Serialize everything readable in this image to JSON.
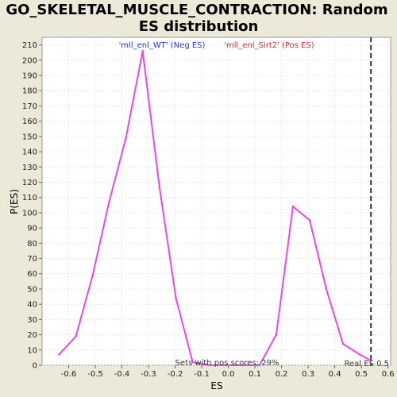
{
  "chart_data": {
    "type": "line",
    "title_line1": "GO_SKELETAL_MUSCLE_CONTRACTION: Random",
    "title_line2": "ES distribution",
    "xlabel": "ES",
    "ylabel": "P(ES)",
    "xlim": [
      -0.7,
      0.61
    ],
    "ylim": [
      0,
      215
    ],
    "x_ticks": [
      -0.6,
      -0.5,
      -0.4,
      -0.3,
      -0.2,
      -0.1,
      0.0,
      0.1,
      0.2,
      0.3,
      0.4,
      0.5,
      0.6
    ],
    "x_tick_labels": [
      "-0.6",
      "-0.5",
      "-0.4",
      "-0.3",
      "-0.2",
      "-0.1",
      "0.0",
      "0.1",
      "0.2",
      "0.3",
      "0.4",
      "0.5",
      "0.6"
    ],
    "y_ticks": [
      0,
      10,
      20,
      30,
      40,
      50,
      60,
      70,
      80,
      90,
      100,
      110,
      120,
      130,
      140,
      150,
      160,
      170,
      180,
      190,
      200,
      210
    ],
    "grid": true,
    "series": [
      {
        "color": "#ee44ee",
        "x": [
          -0.636,
          -0.573,
          -0.51,
          -0.448,
          -0.385,
          -0.322,
          -0.259,
          -0.197,
          -0.134,
          -0.071,
          -0.008,
          0.055,
          0.117,
          0.18,
          0.243,
          0.306,
          0.368,
          0.431,
          0.494,
          0.536
        ],
        "y": [
          7,
          19,
          59,
          107,
          149,
          206,
          117,
          44,
          2,
          0,
          0,
          0,
          0,
          20,
          104,
          95,
          50,
          14,
          7,
          3
        ]
      }
    ],
    "legend": [
      {
        "label": "'mll_enl_WT' (Neg ES)",
        "color": "#3333cc"
      },
      {
        "label": "'mll_enl_Sirt2' (Pos ES)",
        "color": "#cc3333"
      }
    ],
    "real_es": {
      "x": 0.536,
      "label": "Real ES 0.5"
    },
    "footnote": "Sets with pos scores: 29%"
  }
}
